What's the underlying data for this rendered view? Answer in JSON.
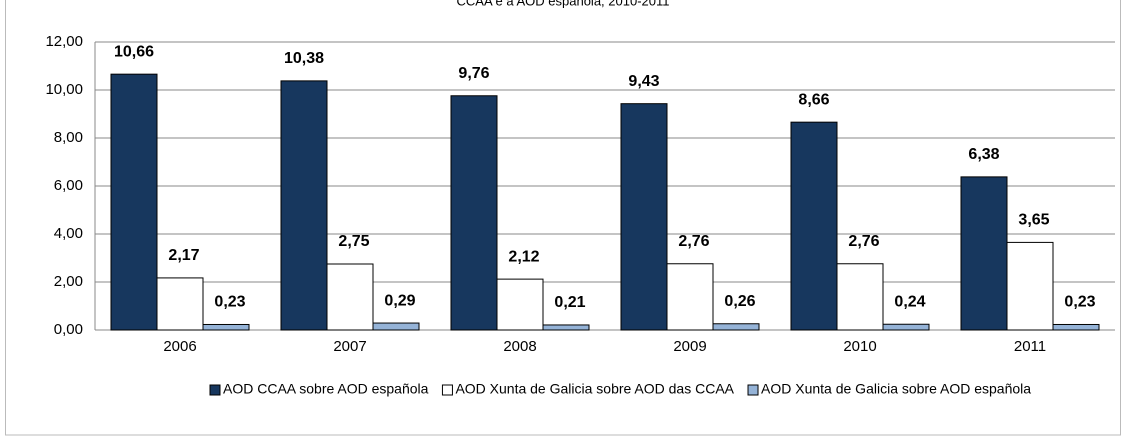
{
  "chart_data": {
    "type": "bar",
    "title": "CCAA e a AOD española, 2010-2011",
    "categories": [
      "2006",
      "2007",
      "2008",
      "2009",
      "2010",
      "2011"
    ],
    "series": [
      {
        "name": "AOD CCAA sobre AOD española",
        "color": "#17375e",
        "values": [
          10.66,
          10.38,
          9.76,
          9.43,
          8.66,
          6.38
        ],
        "value_labels": [
          "10,66",
          "10,38",
          "9,76",
          "9,43",
          "8,66",
          "6,38"
        ]
      },
      {
        "name": "AOD Xunta de Galicia sobre AOD das CCAA",
        "color": "#ffffff",
        "values": [
          2.17,
          2.75,
          2.12,
          2.76,
          2.76,
          3.65
        ],
        "value_labels": [
          "2,17",
          "2,75",
          "2,12",
          "2,76",
          "2,76",
          "3,65"
        ]
      },
      {
        "name": "AOD Xunta de Galicia sobre AOD española",
        "color": "#95b3d7",
        "values": [
          0.23,
          0.29,
          0.21,
          0.26,
          0.24,
          0.23
        ],
        "value_labels": [
          "0,23",
          "0,29",
          "0,21",
          "0,26",
          "0,24",
          "0,23"
        ]
      }
    ],
    "ylim": [
      0,
      12
    ],
    "yticks": [
      {
        "value": 0,
        "label": "0,00"
      },
      {
        "value": 2,
        "label": "2,00"
      },
      {
        "value": 4,
        "label": "4,00"
      },
      {
        "value": 6,
        "label": "6,00"
      },
      {
        "value": 8,
        "label": "8,00"
      },
      {
        "value": 10,
        "label": "10,00"
      },
      {
        "value": 12,
        "label": "12,00"
      }
    ],
    "grid": true,
    "legend": "bottom"
  }
}
